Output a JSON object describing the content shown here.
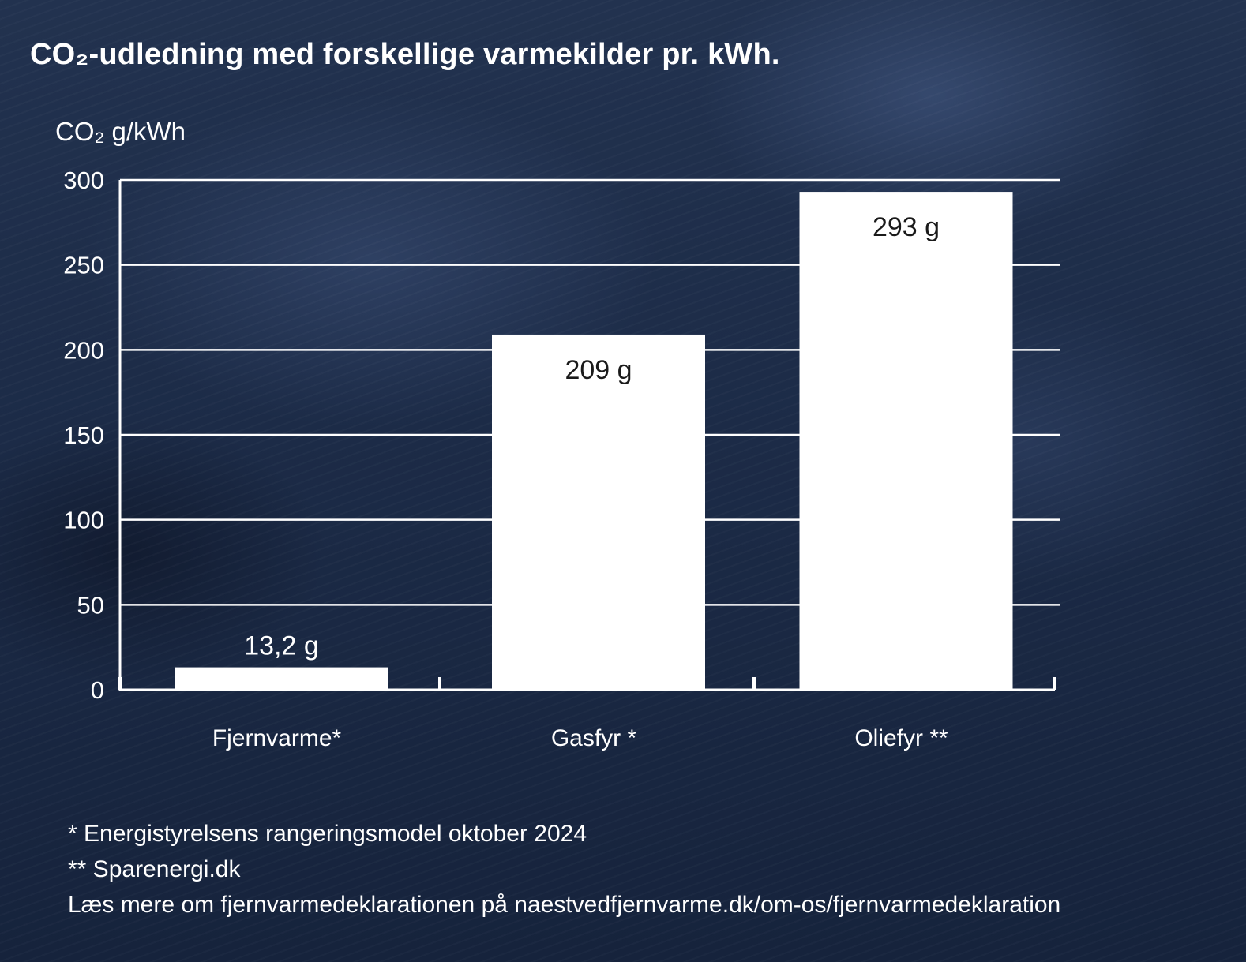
{
  "title": "CO₂-udledning med forskellige varmekilder pr. kWh.",
  "chart_data": {
    "type": "bar",
    "ylabel": "CO₂ g/kWh",
    "ylim": [
      0,
      300
    ],
    "yticks": [
      0,
      50,
      100,
      150,
      200,
      250,
      300
    ],
    "categories": [
      "Fjernvarme*",
      "Gasfyr *",
      "Oliefyr **"
    ],
    "values": [
      13.2,
      209,
      293
    ],
    "data_labels": [
      "13,2 g",
      "209 g",
      "293 g"
    ],
    "grid": true,
    "colors": {
      "bar": "#ffffff",
      "grid": "#ffffff",
      "data_label_on_bar": "#1a1a1a",
      "data_label_above": "#ffffff"
    }
  },
  "footnotes": [
    "* Energistyrelsens rangeringsmodel oktober 2024",
    "** Sparenergi.dk",
    "Læs  mere om fjernvarmedeklarationen på naestvedfjernvarme.dk/om-os/fjernvarmedeklaration"
  ],
  "colors": {
    "background": "#1c2b47",
    "text": "#ffffff"
  }
}
